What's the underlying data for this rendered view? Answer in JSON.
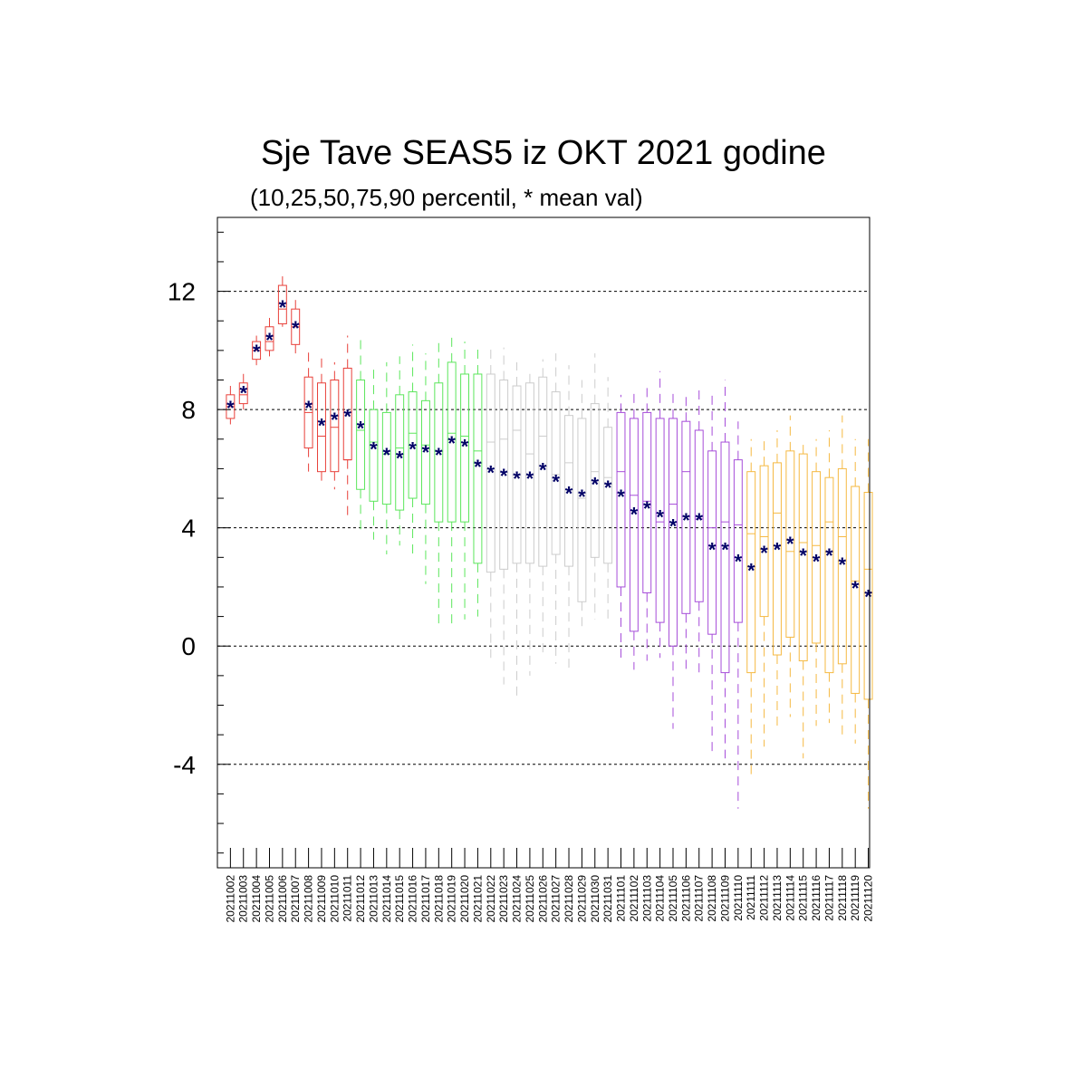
{
  "chart_data": {
    "type": "box",
    "title": "Sje Tave SEAS5 iz OKT 2021 godine",
    "subtitle": "(10,25,50,75,90 percentil, * mean val)",
    "ylim": [
      -7.5,
      14.5
    ],
    "yticks": [
      -4,
      0,
      4,
      8,
      12
    ],
    "y_minor_step": 1,
    "grid": "dashed horizontal at major y ticks",
    "colors": {
      "red": "#e8403a",
      "green": "#5ce65c",
      "gray": "#cccccc",
      "purple": "#a64dd9",
      "orange": "#f5b942",
      "mean_marker": "#000066"
    },
    "categories": [
      "20211002",
      "20211003",
      "20211004",
      "20211005",
      "20211006",
      "20211007",
      "20211008",
      "20211009",
      "20211010",
      "20211011",
      "20211012",
      "20211013",
      "20211014",
      "20211015",
      "20211016",
      "20211017",
      "20211018",
      "20211019",
      "20211020",
      "20211021",
      "20211022",
      "20211023",
      "20211024",
      "20211025",
      "20211026",
      "20211027",
      "20211028",
      "20211029",
      "20211030",
      "20211031",
      "20211101",
      "20211102",
      "20211103",
      "20211104",
      "20211105",
      "20211106",
      "20211107",
      "20211108",
      "20211109",
      "20211110",
      "20211111",
      "20211112",
      "20211113",
      "20211114",
      "20211115",
      "20211116",
      "20211117",
      "20211118",
      "20211119",
      "20211120"
    ],
    "group_colors": [
      "red",
      "red",
      "red",
      "red",
      "red",
      "red",
      "red",
      "red",
      "red",
      "red",
      "green",
      "green",
      "green",
      "green",
      "green",
      "green",
      "green",
      "green",
      "green",
      "green",
      "gray",
      "gray",
      "gray",
      "gray",
      "gray",
      "gray",
      "gray",
      "gray",
      "gray",
      "gray",
      "purple",
      "purple",
      "purple",
      "purple",
      "purple",
      "purple",
      "purple",
      "purple",
      "purple",
      "purple",
      "orange",
      "orange",
      "orange",
      "orange",
      "orange",
      "orange",
      "orange",
      "orange",
      "orange",
      "orange"
    ],
    "p10": [
      7.5,
      8.0,
      9.5,
      9.8,
      10.8,
      9.9,
      5.9,
      5.4,
      5.3,
      4.4,
      3.8,
      3.6,
      3.1,
      3.4,
      3.1,
      2.1,
      0.7,
      0.7,
      0.9,
      1.0,
      -0.4,
      -1.3,
      -1.7,
      -1.0,
      -0.3,
      -0.6,
      -0.8,
      0.6,
      0.9,
      0.9,
      -0.4,
      -0.8,
      -0.5,
      -0.4,
      -2.8,
      -0.8,
      -1.0,
      -3.6,
      -3.8,
      -5.5,
      -4.5,
      -3.4,
      -2.8,
      -2.4,
      -3.8,
      -2.7,
      -2.6,
      -3.2,
      -3.3,
      -5.5
    ],
    "p25": [
      7.7,
      8.2,
      9.7,
      10.0,
      10.9,
      10.2,
      6.7,
      5.9,
      5.9,
      6.3,
      5.3,
      4.9,
      4.8,
      4.6,
      5.0,
      4.8,
      4.2,
      4.2,
      4.2,
      2.8,
      2.5,
      2.6,
      2.8,
      2.8,
      2.7,
      3.1,
      2.7,
      1.5,
      3.0,
      2.8,
      2.0,
      0.5,
      1.8,
      0.8,
      0.0,
      1.1,
      1.5,
      0.4,
      -0.9,
      0.8,
      -0.9,
      1.0,
      -0.3,
      0.3,
      -0.5,
      0.1,
      -0.9,
      -0.6,
      -1.6,
      -1.8
    ],
    "p50": [
      8.1,
      8.5,
      10.0,
      10.3,
      11.4,
      10.8,
      7.9,
      7.1,
      7.4,
      6.3,
      7.3,
      6.9,
      6.5,
      6.7,
      7.2,
      6.8,
      6.6,
      7.2,
      7.1,
      6.6,
      6.9,
      7.0,
      7.3,
      6.5,
      7.1,
      5.8,
      6.2,
      5.0,
      5.9,
      5.7,
      5.9,
      5.1,
      4.9,
      4.2,
      4.8,
      5.9,
      4.3,
      4.0,
      4.2,
      4.1,
      3.8,
      3.7,
      4.5,
      3.2,
      3.5,
      3.4,
      4.2,
      3.7,
      2.2,
      2.6
    ],
    "p75": [
      8.5,
      8.9,
      10.3,
      10.8,
      12.2,
      11.4,
      9.1,
      8.9,
      9.0,
      9.4,
      9.0,
      8.0,
      7.9,
      8.5,
      8.6,
      8.3,
      8.9,
      9.6,
      9.2,
      9.2,
      9.2,
      9.0,
      8.8,
      8.9,
      9.1,
      8.6,
      7.8,
      7.7,
      8.2,
      7.4,
      7.9,
      7.7,
      7.9,
      7.7,
      7.7,
      7.6,
      7.3,
      6.6,
      6.9,
      6.3,
      5.9,
      6.1,
      6.2,
      6.6,
      6.5,
      5.9,
      5.7,
      6.0,
      5.4,
      5.2
    ],
    "p90": [
      8.8,
      9.3,
      10.5,
      11.1,
      12.6,
      11.8,
      10.0,
      9.9,
      9.6,
      10.5,
      10.5,
      9.5,
      9.6,
      9.8,
      10.2,
      9.9,
      10.3,
      10.5,
      10.3,
      10.2,
      10.1,
      10.1,
      9.6,
      9.4,
      9.7,
      9.9,
      9.5,
      9.0,
      9.9,
      9.1,
      8.5,
      8.7,
      8.8,
      9.3,
      8.6,
      8.5,
      8.7,
      8.6,
      9.0,
      7.6,
      7.0,
      7.0,
      7.3,
      7.8,
      7.0,
      7.0,
      7.3,
      7.8,
      7.0,
      7.0
    ],
    "mean": [
      8.1,
      8.6,
      10.0,
      10.4,
      11.5,
      10.8,
      8.1,
      7.5,
      7.7,
      7.8,
      7.4,
      6.7,
      6.5,
      6.4,
      6.7,
      6.6,
      6.5,
      6.9,
      6.8,
      6.1,
      5.9,
      5.8,
      5.7,
      5.7,
      6.0,
      5.6,
      5.2,
      5.1,
      5.5,
      5.4,
      5.1,
      4.5,
      4.7,
      4.4,
      4.1,
      4.3,
      4.3,
      3.3,
      3.3,
      2.9,
      2.6,
      3.2,
      3.3,
      3.5,
      3.1,
      2.9,
      3.1,
      2.8,
      2.0,
      1.7
    ]
  }
}
